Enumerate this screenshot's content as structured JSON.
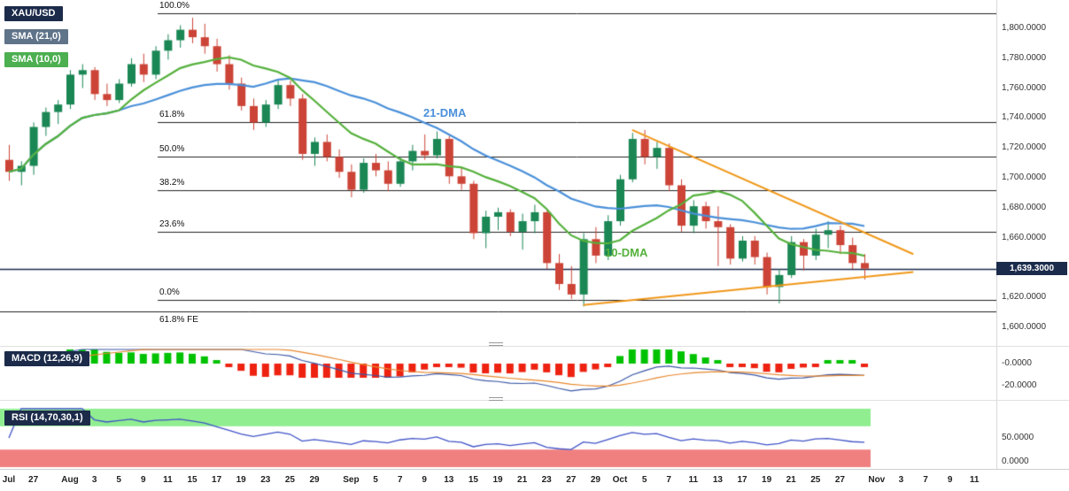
{
  "header": {
    "symbol_badge": "XAU/USD",
    "sma21_badge": "SMA (21,0)",
    "sma10_badge": "SMA (10,0)"
  },
  "labels": {
    "dma21": "21-DMA",
    "dma10": "10-DMA",
    "last_price": "1,639.3000",
    "macd_badge": "MACD (12,26,9)",
    "rsi_badge": "RSI (14,70,30,1)"
  },
  "colors": {
    "up": "#1a8754",
    "down": "#cc4437",
    "sma21": "#4a90d9",
    "sma10": "#55b13c",
    "trendline": "#f09819",
    "price_line": "#1b2b4b",
    "fib_line": "#222222",
    "macd_line": "#3a57a7",
    "macd_signal": "#e8882d",
    "hist_up": "#00c200",
    "hist_down": "#ee2211",
    "rsi_line": "#4053c8",
    "rsi_upper_band": "#90ee90",
    "rsi_lower_band": "#f08080",
    "badge_navy": "#1c2b4a",
    "badge_slate": "#5f7389",
    "badge_green": "#4caf50"
  },
  "chart_data": {
    "type": "candlestick",
    "symbol": "XAU/USD",
    "interval": "daily",
    "current_price": 1639.3,
    "ylim": [
      1588,
      1819
    ],
    "candles": [
      [
        1712,
        1722,
        1698,
        1704
      ],
      [
        1704,
        1711,
        1695,
        1708
      ],
      [
        1708,
        1737,
        1702,
        1734
      ],
      [
        1734,
        1747,
        1728,
        1744
      ],
      [
        1744,
        1752,
        1736,
        1749
      ],
      [
        1749,
        1772,
        1746,
        1769
      ],
      [
        1769,
        1776,
        1760,
        1772
      ],
      [
        1772,
        1774,
        1752,
        1756
      ],
      [
        1756,
        1763,
        1748,
        1752
      ],
      [
        1752,
        1766,
        1750,
        1763
      ],
      [
        1763,
        1780,
        1761,
        1776
      ],
      [
        1776,
        1783,
        1764,
        1769
      ],
      [
        1769,
        1788,
        1766,
        1785
      ],
      [
        1785,
        1796,
        1779,
        1792
      ],
      [
        1792,
        1802,
        1787,
        1799
      ],
      [
        1799,
        1807,
        1790,
        1794
      ],
      [
        1794,
        1803,
        1783,
        1788
      ],
      [
        1788,
        1793,
        1771,
        1776
      ],
      [
        1776,
        1782,
        1759,
        1763
      ],
      [
        1763,
        1767,
        1745,
        1748
      ],
      [
        1748,
        1753,
        1732,
        1737
      ],
      [
        1737,
        1752,
        1734,
        1749
      ],
      [
        1749,
        1766,
        1746,
        1762
      ],
      [
        1762,
        1765,
        1748,
        1753
      ],
      [
        1753,
        1756,
        1712,
        1716
      ],
      [
        1716,
        1727,
        1708,
        1724
      ],
      [
        1724,
        1729,
        1711,
        1714
      ],
      [
        1714,
        1719,
        1700,
        1704
      ],
      [
        1704,
        1709,
        1687,
        1692
      ],
      [
        1692,
        1713,
        1690,
        1710
      ],
      [
        1710,
        1716,
        1701,
        1705
      ],
      [
        1705,
        1711,
        1691,
        1696
      ],
      [
        1696,
        1714,
        1694,
        1711
      ],
      [
        1711,
        1722,
        1705,
        1718
      ],
      [
        1718,
        1729,
        1712,
        1715
      ],
      [
        1715,
        1731,
        1713,
        1726
      ],
      [
        1726,
        1728,
        1696,
        1701
      ],
      [
        1701,
        1707,
        1692,
        1696
      ],
      [
        1696,
        1698,
        1659,
        1663
      ],
      [
        1663,
        1678,
        1653,
        1674
      ],
      [
        1674,
        1680,
        1665,
        1677
      ],
      [
        1677,
        1679,
        1661,
        1664
      ],
      [
        1664,
        1676,
        1652,
        1671
      ],
      [
        1671,
        1682,
        1663,
        1677
      ],
      [
        1677,
        1679,
        1639,
        1643
      ],
      [
        1643,
        1649,
        1625,
        1629
      ],
      [
        1629,
        1641,
        1619,
        1622
      ],
      [
        1622,
        1663,
        1614,
        1659
      ],
      [
        1659,
        1667,
        1643,
        1648
      ],
      [
        1648,
        1675,
        1645,
        1671
      ],
      [
        1671,
        1702,
        1668,
        1699
      ],
      [
        1699,
        1730,
        1697,
        1726
      ],
      [
        1726,
        1732,
        1709,
        1714
      ],
      [
        1714,
        1724,
        1706,
        1720
      ],
      [
        1720,
        1723,
        1691,
        1695
      ],
      [
        1695,
        1699,
        1664,
        1668
      ],
      [
        1668,
        1685,
        1663,
        1681
      ],
      [
        1681,
        1684,
        1666,
        1671
      ],
      [
        1671,
        1681,
        1641,
        1667
      ],
      [
        1667,
        1669,
        1642,
        1646
      ],
      [
        1646,
        1661,
        1644,
        1658
      ],
      [
        1658,
        1661,
        1642,
        1647
      ],
      [
        1647,
        1650,
        1622,
        1627
      ],
      [
        1627,
        1639,
        1616,
        1635
      ],
      [
        1635,
        1661,
        1633,
        1657
      ],
      [
        1657,
        1659,
        1638,
        1648
      ],
      [
        1648,
        1666,
        1645,
        1662
      ],
      [
        1662,
        1671,
        1653,
        1665
      ],
      [
        1665,
        1668,
        1649,
        1655
      ],
      [
        1655,
        1660,
        1639,
        1643
      ],
      [
        1643,
        1649,
        1632,
        1639.3
      ]
    ],
    "sma_overlays": [
      {
        "name": "SMA 21",
        "period": 21
      },
      {
        "name": "SMA 10",
        "period": 10
      }
    ],
    "fib_levels": [
      {
        "label": "100.0%",
        "price": 1810.3,
        "full_width": false,
        "label_below": false
      },
      {
        "label": "61.8%",
        "price": 1737.0,
        "full_width": false,
        "label_below": false
      },
      {
        "label": "50.0%",
        "price": 1714.4,
        "full_width": false,
        "label_below": false
      },
      {
        "label": "38.2%",
        "price": 1691.7,
        "full_width": false,
        "label_below": false
      },
      {
        "label": "23.6%",
        "price": 1663.7,
        "full_width": false,
        "label_below": false
      },
      {
        "label": "0.0%",
        "price": 1618.5,
        "full_width": false,
        "label_below": false
      },
      {
        "label": "61.8% FE",
        "price": 1610.7,
        "full_width": true,
        "label_below": true
      }
    ],
    "trendlines": [
      {
        "from_slot": 51,
        "from_price": 1732,
        "to_slot": 74,
        "to_price": 1649
      },
      {
        "from_slot": 47,
        "from_price": 1615,
        "to_slot": 74,
        "to_price": 1637
      }
    ],
    "price_ticks": [
      {
        "text": "1,800.0000",
        "price": 1800
      },
      {
        "text": "1,780.0000",
        "price": 1780
      },
      {
        "text": "1,760.0000",
        "price": 1760
      },
      {
        "text": "1,740.0000",
        "price": 1740
      },
      {
        "text": "1,720.0000",
        "price": 1720
      },
      {
        "text": "1,700.0000",
        "price": 1700
      },
      {
        "text": "1,680.0000",
        "price": 1680
      },
      {
        "text": "1,660.0000",
        "price": 1660
      },
      {
        "text": "1,620.0000",
        "price": 1620
      },
      {
        "text": "1,600.0000",
        "price": 1600
      }
    ],
    "time_ticks": [
      {
        "slot": 0,
        "text": "Jul"
      },
      {
        "slot": 2,
        "text": "27"
      },
      {
        "slot": 5,
        "text": "Aug"
      },
      {
        "slot": 7,
        "text": "3"
      },
      {
        "slot": 9,
        "text": "5"
      },
      {
        "slot": 11,
        "text": "9"
      },
      {
        "slot": 13,
        "text": "11"
      },
      {
        "slot": 15,
        "text": "15"
      },
      {
        "slot": 17,
        "text": "17"
      },
      {
        "slot": 19,
        "text": "19"
      },
      {
        "slot": 21,
        "text": "23"
      },
      {
        "slot": 23,
        "text": "25"
      },
      {
        "slot": 25,
        "text": "29"
      },
      {
        "slot": 28,
        "text": "Sep"
      },
      {
        "slot": 30,
        "text": "5"
      },
      {
        "slot": 32,
        "text": "7"
      },
      {
        "slot": 34,
        "text": "9"
      },
      {
        "slot": 36,
        "text": "13"
      },
      {
        "slot": 38,
        "text": "15"
      },
      {
        "slot": 40,
        "text": "19"
      },
      {
        "slot": 42,
        "text": "21"
      },
      {
        "slot": 44,
        "text": "23"
      },
      {
        "slot": 46,
        "text": "27"
      },
      {
        "slot": 48,
        "text": "29"
      },
      {
        "slot": 50,
        "text": "Oct"
      },
      {
        "slot": 52,
        "text": "5"
      },
      {
        "slot": 54,
        "text": "7"
      },
      {
        "slot": 56,
        "text": "11"
      },
      {
        "slot": 58,
        "text": "13"
      },
      {
        "slot": 60,
        "text": "17"
      },
      {
        "slot": 62,
        "text": "19"
      },
      {
        "slot": 64,
        "text": "21"
      },
      {
        "slot": 66,
        "text": "25"
      },
      {
        "slot": 68,
        "text": "27"
      },
      {
        "slot": 71,
        "text": "Nov"
      },
      {
        "slot": 73,
        "text": "3"
      },
      {
        "slot": 75,
        "text": "7"
      },
      {
        "slot": 77,
        "text": "9"
      },
      {
        "slot": 79,
        "text": "11"
      }
    ],
    "macd": {
      "fast": 12,
      "slow": 26,
      "signal": 9,
      "ticks": [
        {
          "text": "-0.0000",
          "value": 0
        },
        {
          "text": "-20.0000",
          "value": -20
        }
      ]
    },
    "rsi": {
      "period": 14,
      "upper": 70,
      "lower": 30,
      "ticks": [
        {
          "text": "50.0000",
          "value": 50
        },
        {
          "text": "0.0000",
          "value": 0
        }
      ]
    }
  }
}
